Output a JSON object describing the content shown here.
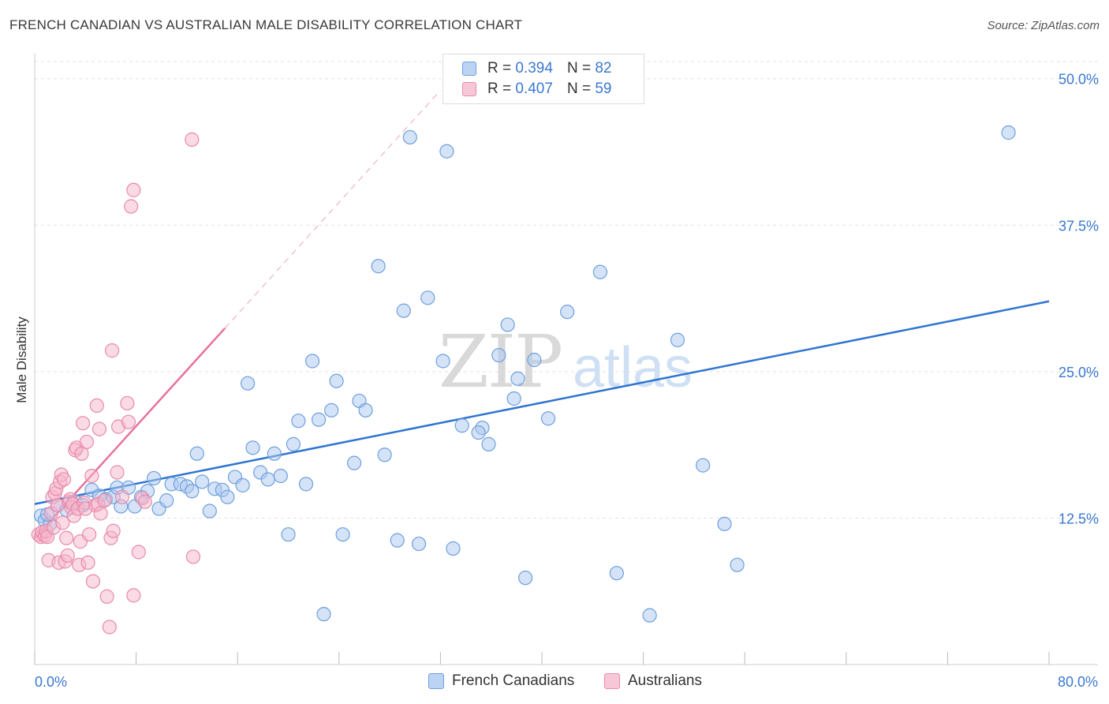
{
  "header": {
    "title": "FRENCH CANADIAN VS AUSTRALIAN MALE DISABILITY CORRELATION CHART",
    "source": "Source: ZipAtlas.com"
  },
  "legend": {
    "r_label": "R =",
    "n_label": "N =",
    "series": [
      {
        "name": "French Canadians",
        "r": "0.394",
        "n": "82"
      },
      {
        "name": "Australians",
        "r": "0.407",
        "n": "59"
      }
    ]
  },
  "watermark": {
    "zip": "ZIP",
    "atlas": "atlas"
  },
  "colors": {
    "blue_fill": "#a9c8f0",
    "blue_stroke": "#6f9fdc",
    "blue_line": "#2f74d0",
    "pink_fill": "#f6b6cb",
    "pink_stroke": "#e88aa9",
    "pink_line": "#e8719a",
    "axis_text": "#3a78d0",
    "grid": "#e3e3e3"
  },
  "chart_data": {
    "type": "scatter",
    "title": "FRENCH CANADIAN VS AUSTRALIAN MALE DISABILITY CORRELATION CHART",
    "xlabel": "",
    "ylabel": "Male Disability",
    "xlim": [
      0,
      80
    ],
    "ylim": [
      0,
      52
    ],
    "x_tick_labels": [
      "0.0%",
      "80.0%"
    ],
    "y_ticks": [
      12.5,
      25.0,
      37.5,
      50.0
    ],
    "y_tick_labels": [
      "12.5%",
      "25.0%",
      "37.5%",
      "50.0%"
    ],
    "grid": true,
    "legend_position": "top-center",
    "series": [
      {
        "name": "French Canadians",
        "r": 0.394,
        "n": 82,
        "trend": {
          "x0": 0,
          "y0": 13.7,
          "x1": 80,
          "y1": 31.0
        },
        "points": [
          [
            0.5,
            12.7
          ],
          [
            0.8,
            12.3
          ],
          [
            1.2,
            12.0
          ],
          [
            1.8,
            13.6
          ],
          [
            2.5,
            13.2
          ],
          [
            3.2,
            13.9
          ],
          [
            3.8,
            13.6
          ],
          [
            4.5,
            14.9
          ],
          [
            5.1,
            14.4
          ],
          [
            5.6,
            14.1
          ],
          [
            6.2,
            14.3
          ],
          [
            6.5,
            15.1
          ],
          [
            6.8,
            13.5
          ],
          [
            7.4,
            15.1
          ],
          [
            7.9,
            13.5
          ],
          [
            8.4,
            14.3
          ],
          [
            8.9,
            14.8
          ],
          [
            9.4,
            15.9
          ],
          [
            9.8,
            13.3
          ],
          [
            10.4,
            14.0
          ],
          [
            10.8,
            15.4
          ],
          [
            11.5,
            15.4
          ],
          [
            12.0,
            15.2
          ],
          [
            12.4,
            14.8
          ],
          [
            12.8,
            18.0
          ],
          [
            13.2,
            15.6
          ],
          [
            13.8,
            13.1
          ],
          [
            14.2,
            15.0
          ],
          [
            14.8,
            14.9
          ],
          [
            15.2,
            14.3
          ],
          [
            15.8,
            16.0
          ],
          [
            16.4,
            15.3
          ],
          [
            16.8,
            24.0
          ],
          [
            17.2,
            18.5
          ],
          [
            17.8,
            16.4
          ],
          [
            18.4,
            15.8
          ],
          [
            18.9,
            18.0
          ],
          [
            19.4,
            16.1
          ],
          [
            20.0,
            11.1
          ],
          [
            20.4,
            18.8
          ],
          [
            20.8,
            20.8
          ],
          [
            21.4,
            15.4
          ],
          [
            21.9,
            25.9
          ],
          [
            22.4,
            20.9
          ],
          [
            22.8,
            4.3
          ],
          [
            23.4,
            21.7
          ],
          [
            23.8,
            24.2
          ],
          [
            24.3,
            11.1
          ],
          [
            25.2,
            17.2
          ],
          [
            25.6,
            22.5
          ],
          [
            26.1,
            21.7
          ],
          [
            27.1,
            34.0
          ],
          [
            27.6,
            17.9
          ],
          [
            28.6,
            10.6
          ],
          [
            29.1,
            30.2
          ],
          [
            29.6,
            45.0
          ],
          [
            30.3,
            10.3
          ],
          [
            31.0,
            31.3
          ],
          [
            32.2,
            25.9
          ],
          [
            32.5,
            43.8
          ],
          [
            33.0,
            9.9
          ],
          [
            33.7,
            20.4
          ],
          [
            35.3,
            20.2
          ],
          [
            35.0,
            19.8
          ],
          [
            35.8,
            18.8
          ],
          [
            36.6,
            26.4
          ],
          [
            37.3,
            29.0
          ],
          [
            37.8,
            22.7
          ],
          [
            38.7,
            7.4
          ],
          [
            39.4,
            26.0
          ],
          [
            40.5,
            21.0
          ],
          [
            42.0,
            30.1
          ],
          [
            44.6,
            33.5
          ],
          [
            45.9,
            7.8
          ],
          [
            48.5,
            4.2
          ],
          [
            50.7,
            27.7
          ],
          [
            52.7,
            17.0
          ],
          [
            54.4,
            12.0
          ],
          [
            55.4,
            8.5
          ],
          [
            76.8,
            45.4
          ],
          [
            38.1,
            24.4
          ],
          [
            1.0,
            12.8
          ]
        ]
      },
      {
        "name": "Australians",
        "r": 0.407,
        "n": 59,
        "trend": {
          "x0": 0,
          "y0": 10.8,
          "x1": 15,
          "y1": 28.7
        },
        "trend_extension": {
          "x0": 15,
          "y0": 28.7,
          "x1": 32,
          "y1": 49.0
        },
        "points": [
          [
            0.3,
            11.1
          ],
          [
            0.5,
            10.9
          ],
          [
            0.6,
            11.3
          ],
          [
            0.8,
            11.0
          ],
          [
            0.9,
            11.4
          ],
          [
            1.0,
            10.9
          ],
          [
            1.1,
            8.9
          ],
          [
            1.3,
            12.9
          ],
          [
            1.4,
            14.3
          ],
          [
            1.5,
            11.7
          ],
          [
            1.6,
            14.6
          ],
          [
            1.7,
            15.0
          ],
          [
            1.8,
            13.6
          ],
          [
            1.9,
            8.7
          ],
          [
            2.0,
            15.6
          ],
          [
            2.1,
            16.2
          ],
          [
            2.2,
            12.1
          ],
          [
            2.3,
            15.8
          ],
          [
            2.4,
            8.8
          ],
          [
            2.5,
            10.8
          ],
          [
            2.6,
            9.3
          ],
          [
            2.7,
            13.9
          ],
          [
            2.8,
            14.1
          ],
          [
            2.9,
            13.4
          ],
          [
            3.0,
            13.7
          ],
          [
            3.1,
            12.7
          ],
          [
            3.2,
            18.3
          ],
          [
            3.3,
            18.5
          ],
          [
            3.4,
            13.3
          ],
          [
            3.5,
            8.5
          ],
          [
            3.6,
            10.5
          ],
          [
            3.7,
            18.0
          ],
          [
            3.8,
            20.6
          ],
          [
            3.9,
            13.8
          ],
          [
            4.0,
            13.3
          ],
          [
            4.1,
            19.0
          ],
          [
            4.2,
            8.7
          ],
          [
            4.3,
            11.1
          ],
          [
            4.5,
            16.1
          ],
          [
            4.6,
            7.1
          ],
          [
            4.8,
            13.6
          ],
          [
            4.9,
            22.1
          ],
          [
            5.0,
            13.7
          ],
          [
            5.1,
            20.1
          ],
          [
            5.2,
            12.9
          ],
          [
            5.5,
            14.0
          ],
          [
            5.7,
            5.8
          ],
          [
            5.9,
            3.2
          ],
          [
            6.0,
            10.8
          ],
          [
            6.1,
            26.8
          ],
          [
            6.2,
            11.4
          ],
          [
            6.5,
            16.4
          ],
          [
            6.6,
            20.3
          ],
          [
            6.9,
            14.3
          ],
          [
            7.3,
            22.3
          ],
          [
            7.4,
            20.7
          ],
          [
            7.6,
            39.1
          ],
          [
            7.8,
            40.5
          ],
          [
            8.2,
            9.6
          ]
        ],
        "extra_points": [
          [
            8.5,
            14.2
          ],
          [
            8.7,
            13.9
          ],
          [
            7.8,
            5.9
          ],
          [
            12.5,
            9.2
          ],
          [
            12.4,
            44.8
          ]
        ]
      }
    ]
  }
}
